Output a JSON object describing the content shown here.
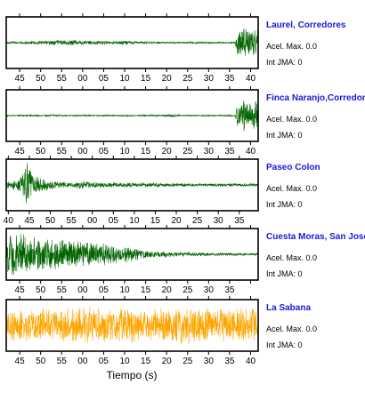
{
  "chart_data": {
    "type": "line",
    "xlabel": "Tiempo (s)",
    "colors": {
      "normal": "#006400",
      "highlight": "#FFA500"
    },
    "panels": [
      {
        "name": "Laurel, Corredores",
        "acel_label": "Acel. Max. 0.0",
        "int_label": "Int JMA: 0",
        "color": "#006400",
        "ticks": [
          "45",
          "50",
          "55",
          "00",
          "05",
          "10",
          "15",
          "20",
          "25",
          "30",
          "35",
          "40"
        ],
        "start_second": 41.8,
        "envelope": [
          [
            0,
            0.04
          ],
          [
            5,
            0.06
          ],
          [
            10,
            0.08
          ],
          [
            12,
            0.12
          ],
          [
            14,
            0.1
          ],
          [
            16,
            0.14
          ],
          [
            18,
            0.07
          ],
          [
            22,
            0.09
          ],
          [
            25,
            0.06
          ],
          [
            28,
            0.1
          ],
          [
            32,
            0.05
          ],
          [
            36,
            0.04
          ],
          [
            40,
            0.03
          ],
          [
            44,
            0.05
          ],
          [
            48,
            0.04
          ],
          [
            52,
            0.03
          ],
          [
            54.5,
            0.04
          ],
          [
            55,
            0.5
          ],
          [
            56,
            0.9
          ],
          [
            57,
            0.7
          ],
          [
            60,
            0.6
          ]
        ]
      },
      {
        "name": "Finca Naranjo,Corredores",
        "acel_label": "Acel. Max. 0.0",
        "int_label": "Int JMA: 0",
        "color": "#006400",
        "ticks": [
          "45",
          "50",
          "55",
          "00",
          "05",
          "10",
          "15",
          "20",
          "25",
          "30",
          "35",
          "40"
        ],
        "start_second": 41.8,
        "envelope": [
          [
            0,
            0.03
          ],
          [
            10,
            0.04
          ],
          [
            20,
            0.03
          ],
          [
            30,
            0.03
          ],
          [
            40,
            0.06
          ],
          [
            42,
            0.03
          ],
          [
            50,
            0.03
          ],
          [
            54.5,
            0.04
          ],
          [
            55,
            0.6
          ],
          [
            56,
            0.85
          ],
          [
            57,
            0.7
          ],
          [
            60,
            0.65
          ]
        ]
      },
      {
        "name": "Paseo Colon",
        "acel_label": "Acel. Max. 0.0",
        "int_label": "Int JMA: 0",
        "color": "#006400",
        "ticks": [
          "40",
          "45",
          "50",
          "55",
          "00",
          "05",
          "10",
          "15",
          "20",
          "25",
          "30",
          "35"
        ],
        "start_second": 39.5,
        "envelope": [
          [
            0,
            0.15
          ],
          [
            3,
            0.25
          ],
          [
            5,
            0.95
          ],
          [
            6,
            0.6
          ],
          [
            8,
            0.3
          ],
          [
            12,
            0.15
          ],
          [
            16,
            0.1
          ],
          [
            18,
            0.22
          ],
          [
            20,
            0.12
          ],
          [
            30,
            0.1
          ],
          [
            40,
            0.08
          ],
          [
            50,
            0.06
          ],
          [
            60,
            0.06
          ]
        ]
      },
      {
        "name": "Cuesta Moras, San Jose",
        "acel_label": "Acel. Max. 0.0",
        "int_label": "Int JMA: 0",
        "color": "#006400",
        "ticks": [
          "45",
          "50",
          "55",
          "00",
          "05",
          "10",
          "15",
          "20",
          "25",
          "30",
          "35"
        ],
        "start_second": 41.8,
        "envelope": [
          [
            0,
            0.75
          ],
          [
            2,
            0.9
          ],
          [
            5,
            0.8
          ],
          [
            10,
            0.7
          ],
          [
            15,
            0.6
          ],
          [
            20,
            0.5
          ],
          [
            25,
            0.45
          ],
          [
            30,
            0.3
          ],
          [
            35,
            0.15
          ],
          [
            40,
            0.1
          ],
          [
            45,
            0.08
          ],
          [
            50,
            0.06
          ],
          [
            60,
            0.05
          ]
        ]
      },
      {
        "name": "La Sabana",
        "acel_label": "Acel. Max. 0.0",
        "int_label": "Int JMA: 0",
        "color": "#FFA500",
        "ticks": [
          "45",
          "50",
          "55",
          "00",
          "05",
          "10",
          "15",
          "20",
          "25",
          "30",
          "35",
          "40"
        ],
        "start_second": 41.8,
        "envelope": [
          [
            0,
            0.65
          ],
          [
            5,
            0.7
          ],
          [
            10,
            0.75
          ],
          [
            15,
            0.7
          ],
          [
            20,
            0.85
          ],
          [
            25,
            0.7
          ],
          [
            30,
            0.75
          ],
          [
            35,
            0.7
          ],
          [
            40,
            0.8
          ],
          [
            45,
            0.9
          ],
          [
            50,
            0.7
          ],
          [
            55,
            0.75
          ],
          [
            60,
            0.7
          ]
        ]
      }
    ]
  }
}
